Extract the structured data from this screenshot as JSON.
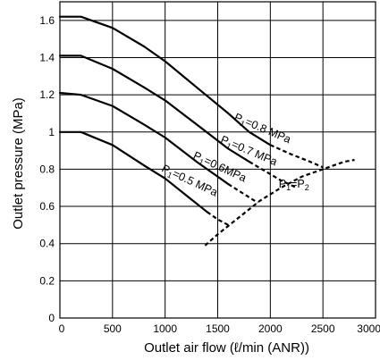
{
  "chart_data": {
    "type": "line",
    "title": "",
    "xlabel": "Outlet air flow (ℓ/min (ANR))",
    "ylabel": "Outlet pressure (MPa)",
    "xlim": [
      0,
      3000
    ],
    "ylim": [
      0,
      1.7
    ],
    "x_ticks": [
      "0",
      "500",
      "1000",
      "1500",
      "2000",
      "2500",
      "3000"
    ],
    "y_ticks": [
      "0",
      "0.2",
      "0.4",
      "0.6",
      "0.8",
      "1",
      "1.2",
      "1.4",
      "1.6"
    ],
    "grid": true,
    "series": [
      {
        "name": "P1=0.8 MPa",
        "label_main": "P",
        "label_sub": "1",
        "label_rest": "=0.8 MPa",
        "x": [
          0,
          200,
          500,
          800,
          1000,
          1300,
          1600,
          1800,
          2000
        ],
        "y": [
          1.62,
          1.62,
          1.56,
          1.46,
          1.38,
          1.24,
          1.1,
          1.0,
          0.93
        ],
        "dashed_x": [
          2000,
          2200,
          2380,
          2500
        ],
        "dashed_y": [
          0.93,
          0.88,
          0.84,
          0.81
        ]
      },
      {
        "name": "P1=0.7 MPa",
        "label_main": "P",
        "label_sub": "1",
        "label_rest": "=0.7 MPa",
        "x": [
          0,
          200,
          500,
          800,
          1000,
          1300,
          1600,
          1800
        ],
        "y": [
          1.41,
          1.41,
          1.34,
          1.24,
          1.17,
          1.04,
          0.91,
          0.84
        ],
        "dashed_x": [
          1800,
          1950,
          2100,
          2250
        ],
        "dashed_y": [
          0.84,
          0.79,
          0.74,
          0.7
        ]
      },
      {
        "name": "P1=0.6MPa",
        "label_main": "P",
        "label_sub": "1",
        "label_rest": "=0.6MPa",
        "x": [
          0,
          200,
          500,
          800,
          1000,
          1300,
          1600
        ],
        "y": [
          1.21,
          1.2,
          1.14,
          1.04,
          0.97,
          0.84,
          0.72
        ],
        "dashed_x": [
          1600,
          1740,
          1880
        ],
        "dashed_y": [
          0.72,
          0.67,
          0.62
        ]
      },
      {
        "name": "P1=0.5 MPa",
        "label_main": "P",
        "label_sub": "1",
        "label_rest": "=0.5 MPa",
        "x": [
          0,
          200,
          500,
          800,
          1000,
          1200,
          1400
        ],
        "y": [
          1.0,
          1.0,
          0.93,
          0.82,
          0.75,
          0.66,
          0.57
        ],
        "dashed_x": [
          1400,
          1500,
          1600
        ],
        "dashed_y": [
          0.57,
          0.53,
          0.5
        ]
      }
    ],
    "boundary": {
      "name": "P1=P2",
      "label_main": "P",
      "label_sub1": "1",
      "label_mid": "=P",
      "label_sub2": "2",
      "x": [
        1380,
        1500,
        1700,
        1900,
        2100,
        2300,
        2500,
        2700,
        2800
      ],
      "y": [
        0.39,
        0.45,
        0.54,
        0.63,
        0.7,
        0.76,
        0.8,
        0.84,
        0.85
      ]
    }
  }
}
